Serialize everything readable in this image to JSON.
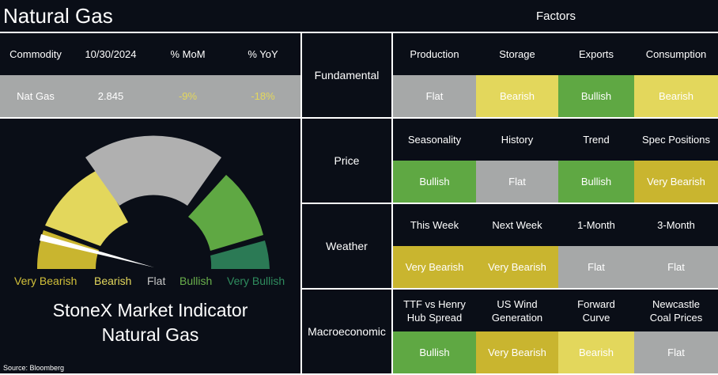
{
  "header": {
    "title": "Natural Gas",
    "factors_title": "Factors"
  },
  "commodity_table": {
    "columns": [
      "Commodity",
      "10/30/2024",
      "% MoM",
      "% YoY"
    ],
    "rows": [
      [
        "Nat Gas",
        "2.845",
        "-9%",
        "-18%"
      ]
    ]
  },
  "gauge": {
    "labels": [
      "Very Bearish",
      "Bearish",
      "Flat",
      "Bullish",
      "Very Bullish"
    ],
    "title_lines": [
      "StoneX Market Indicator",
      "Natural Gas"
    ]
  },
  "source": "Source: Bloomberg",
  "rating_colors": {
    "Flat": "#a6a8a8",
    "Bearish": "#e3d75c",
    "Bullish": "#5fa843",
    "Very Bearish": "#c9b52f"
  },
  "factors": [
    {
      "group": "Fundamental",
      "columns": [
        "Production",
        "Storage",
        "Exports",
        "Consumption"
      ],
      "ratings": [
        "Flat",
        "Bearish",
        "Bullish",
        "Bearish"
      ]
    },
    {
      "group": "Price",
      "columns": [
        "Seasonality",
        "History",
        "Trend",
        "Spec Positions"
      ],
      "ratings": [
        "Bullish",
        "Flat",
        "Bullish",
        "Very Bearish"
      ]
    },
    {
      "group": "Weather",
      "columns": [
        "This Week",
        "Next Week",
        "1-Month",
        "3-Month"
      ],
      "ratings": [
        "Very Bearish",
        "Very Bearish",
        "Flat",
        "Flat"
      ]
    },
    {
      "group": "Macroeconomic",
      "columns": [
        "TTF vs Henry Hub Spread",
        "US Wind Generation",
        "Forward Curve",
        "Newcastle Coal Prices"
      ],
      "ratings": [
        "Bullish",
        "Very Bearish",
        "Bearish",
        "Flat"
      ]
    }
  ]
}
